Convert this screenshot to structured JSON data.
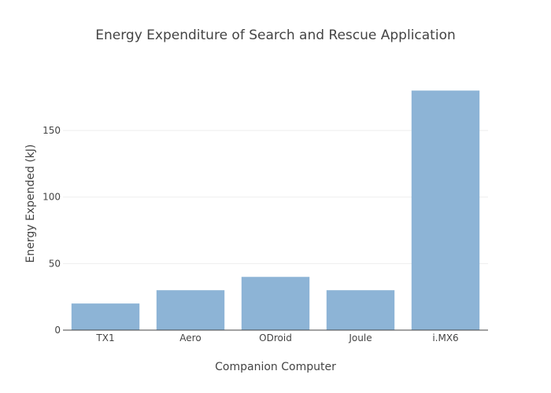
{
  "chart_data": {
    "type": "bar",
    "title": "Energy Expenditure of Search and Rescue Application",
    "xlabel": "Companion Computer",
    "ylabel": "Energy Expended (kJ)",
    "categories": [
      "TX1",
      "Aero",
      "ODroid",
      "Joule",
      "i.MX6"
    ],
    "values": [
      20,
      30,
      40,
      30,
      180
    ],
    "ylim": [
      0,
      189
    ],
    "yticks": [
      0,
      50,
      100,
      150
    ],
    "grid": true,
    "bar_color": "#8db4d6"
  }
}
